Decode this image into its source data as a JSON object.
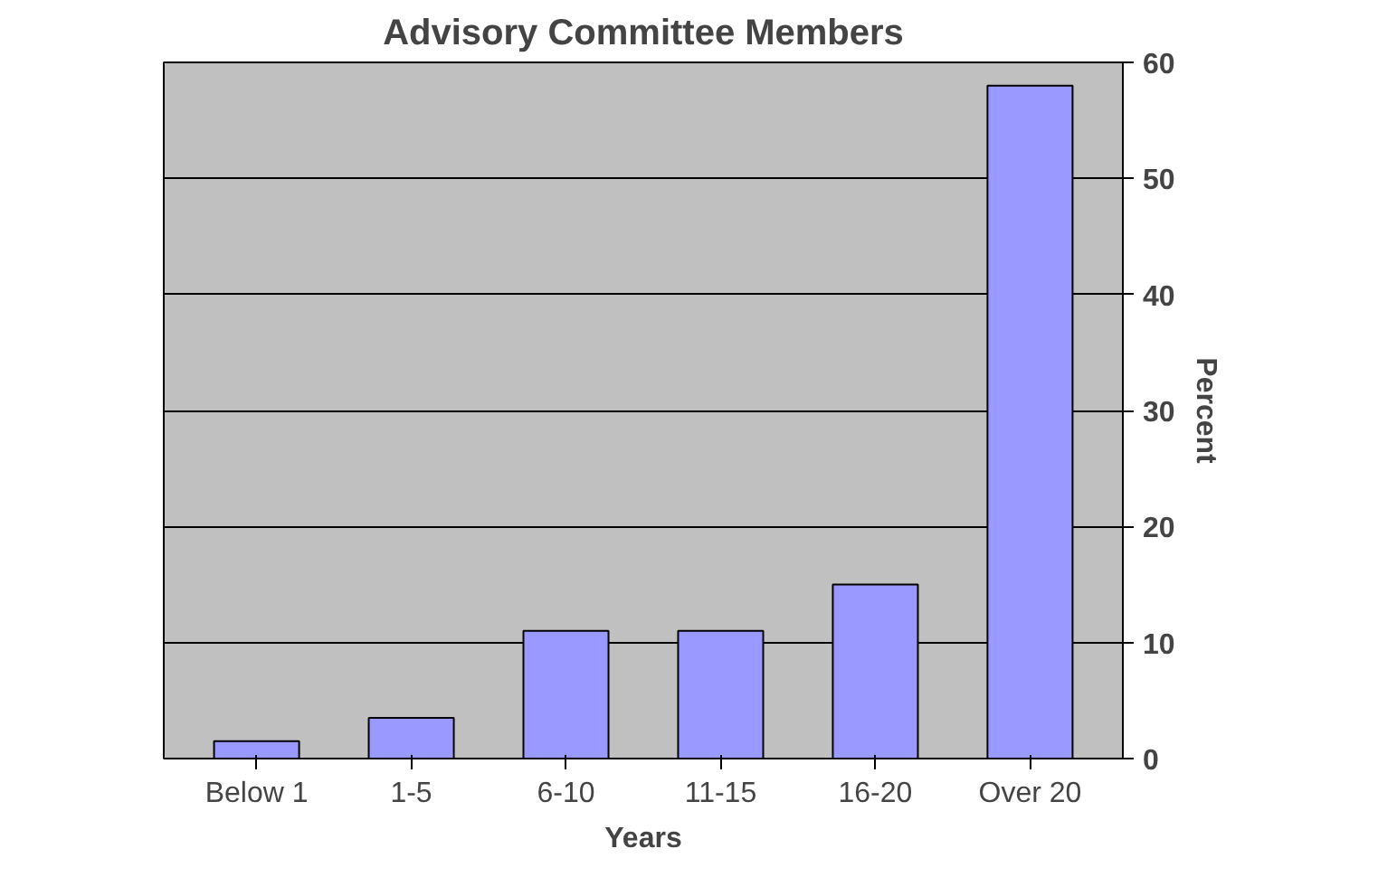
{
  "chart_data": {
    "type": "bar",
    "title": "Advisory Committee Members",
    "xlabel": "Years",
    "ylabel": "Percent",
    "categories": [
      "Below 1",
      "1-5",
      "6-10",
      "11-15",
      "16-20",
      "Over 20"
    ],
    "values": [
      1.5,
      3.5,
      11,
      11,
      15,
      58
    ],
    "color": "#9999ff",
    "ylim": [
      0,
      60
    ],
    "yticks": [
      0,
      10,
      20,
      30,
      40,
      50,
      60
    ],
    "grid": "y"
  }
}
